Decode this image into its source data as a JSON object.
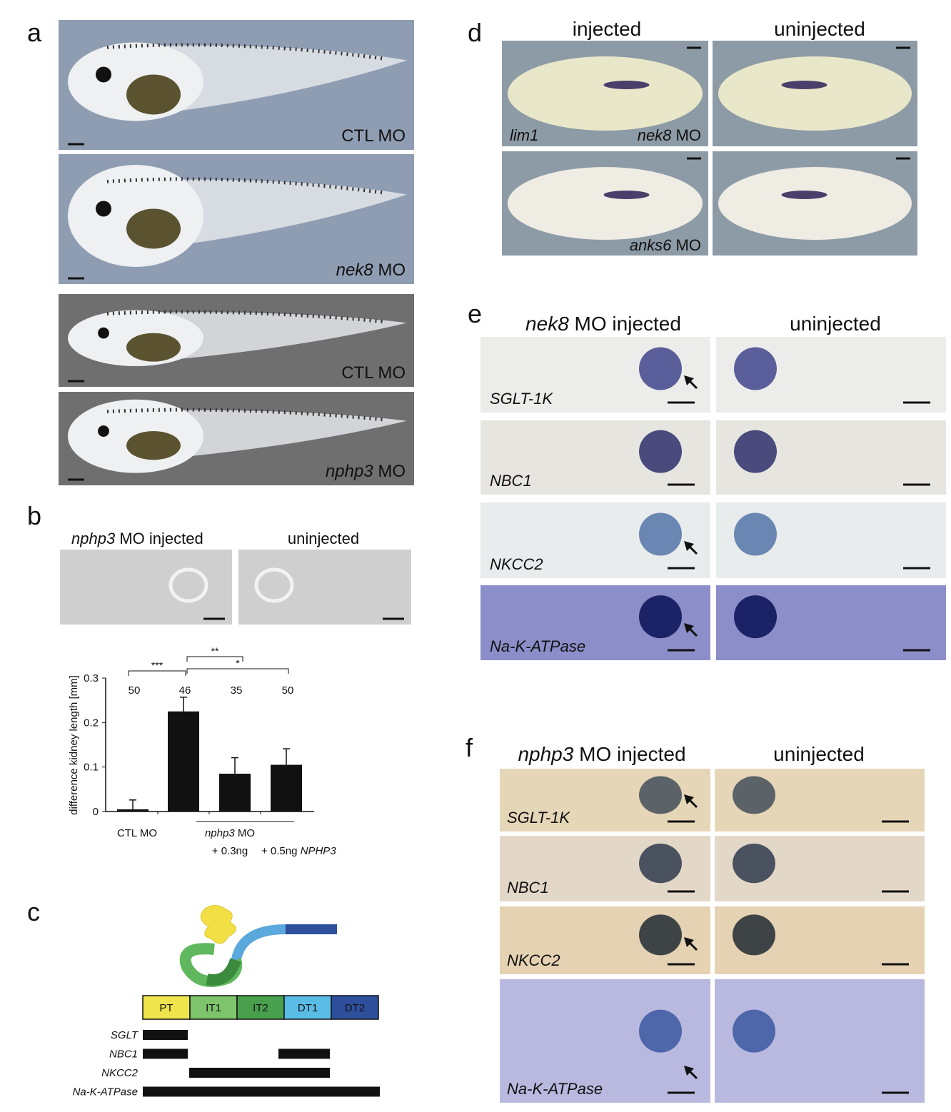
{
  "panel_a": {
    "label": "a",
    "images": [
      {
        "text": "CTL MO"
      },
      {
        "italic": "nek8",
        "text": "MO"
      },
      {
        "text": "CTL MO"
      },
      {
        "italic": "nphp3",
        "text": "MO"
      }
    ]
  },
  "panel_b": {
    "label": "b",
    "headers": [
      {
        "italic": "nphp3",
        "text": "MO injected"
      },
      {
        "text": "uninjected"
      }
    ]
  },
  "chart_data": {
    "type": "bar",
    "ylabel": "difference kidney length [mm]",
    "categories": [
      "CTL MO",
      null,
      "+ 0.3ng",
      "+ 0.5ng"
    ],
    "group_label": {
      "italic": "nphp3",
      "text": "MO"
    },
    "construct": "NPHP3",
    "values": [
      0.005,
      0.225,
      0.085,
      0.105
    ],
    "errors": [
      0.021,
      0.032,
      0.036,
      0.036
    ],
    "n": [
      "50",
      "46",
      "35",
      "50"
    ],
    "significance": [
      "***",
      "**",
      "*"
    ],
    "color": "#111111",
    "ylim": [
      0,
      0.3
    ],
    "yticks": [
      0,
      0.1,
      0.2,
      0.3
    ]
  },
  "panel_c": {
    "label": "c",
    "segments": [
      "PT",
      "IT1",
      "IT2",
      "DT1",
      "DT2"
    ],
    "genes": [
      "SGLT",
      "NBC1",
      "NKCC2",
      "Na-K-ATPase"
    ]
  },
  "panel_d": {
    "label": "d",
    "headers": [
      "injected",
      "uninjected"
    ],
    "marker": "lim1",
    "rows": [
      {
        "italic": "nek8",
        "text": "MO"
      },
      {
        "italic": "anks6",
        "text": "MO"
      }
    ]
  },
  "panel_e": {
    "label": "e",
    "header_injected": {
      "italic": "nek8",
      "text": "MO injected"
    },
    "header_uninjected": "uninjected",
    "genes": [
      "SGLT-1K",
      "NBC1",
      "NKCC2",
      "Na-K-ATPase"
    ]
  },
  "panel_f": {
    "label": "f",
    "header_injected": {
      "italic": "nphp3",
      "text": "MO injected"
    },
    "header_uninjected": "uninjected",
    "genes": [
      "SGLT-1K",
      "NBC1",
      "NKCC2",
      "Na-K-ATPase"
    ]
  }
}
